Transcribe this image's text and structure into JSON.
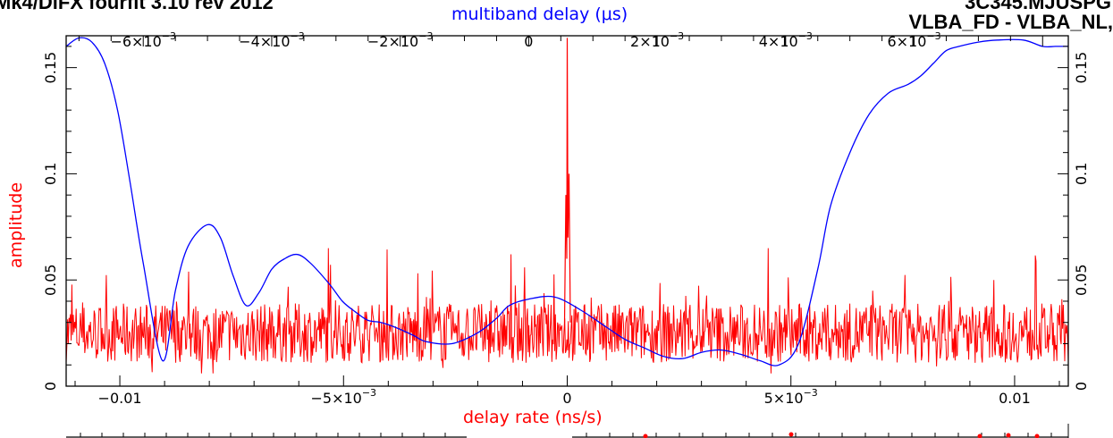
{
  "header": {
    "left_text": "Mk4/DiFX fourfit 3.10 rev 2012",
    "right_line1": "3C345.MJUSPG",
    "right_line2": "VLBA_FD - VLBA_NL,"
  },
  "colors": {
    "amplitude_trace": "#ff0000",
    "multiband_trace": "#0000ff",
    "frame": "#000000"
  },
  "chart_data": {
    "type": "line",
    "title": "",
    "top_axis_label": "multiband delay (μs)",
    "xlabel": "delay rate (ns/s)",
    "ylabel": "amplitude",
    "xlim_rate": [
      -0.0112,
      0.0112
    ],
    "xlim_mbd": [
      -0.0072,
      0.0084
    ],
    "ylim": [
      0,
      0.165
    ],
    "bottom_ticks": [
      {
        "value": -0.01,
        "label": "−0.01"
      },
      {
        "value": -0.005,
        "label": "−5×10",
        "exp": "−3"
      },
      {
        "value": 0,
        "label": "0"
      },
      {
        "value": 0.005,
        "label": "5×10",
        "exp": "−3"
      },
      {
        "value": 0.01,
        "label": "0.01"
      }
    ],
    "top_ticks": [
      {
        "value": -0.006,
        "label": "−6×10",
        "exp": "−3"
      },
      {
        "value": -0.004,
        "label": "−4×10",
        "exp": "−3"
      },
      {
        "value": -0.002,
        "label": "−2×10",
        "exp": "−3"
      },
      {
        "value": 0,
        "label": "0"
      },
      {
        "value": 0.002,
        "label": "2×10",
        "exp": "−3"
      },
      {
        "value": 0.004,
        "label": "4×10",
        "exp": "−3"
      },
      {
        "value": 0.006,
        "label": "6×10",
        "exp": "−3"
      }
    ],
    "y_ticks": [
      {
        "value": 0,
        "label": "0"
      },
      {
        "value": 0.05,
        "label": "0.05"
      },
      {
        "value": 0.1,
        "label": "0.1"
      },
      {
        "value": 0.15,
        "label": "0.15"
      }
    ],
    "series": [
      {
        "axis": "multiband delay",
        "color": "#0000ff",
        "x": [
          -0.0072,
          -0.007,
          -0.0068,
          -0.0066,
          -0.0064,
          -0.0062,
          -0.006,
          -0.0057,
          -0.0055,
          -0.0053,
          -0.005,
          -0.0048,
          -0.0046,
          -0.0044,
          -0.0042,
          -0.004,
          -0.0038,
          -0.0036,
          -0.0034,
          -0.0031,
          -0.0029,
          -0.0027,
          -0.0025,
          -0.0023,
          -0.0021,
          -0.0018,
          -0.0016,
          -0.0012,
          -0.0008,
          -0.0005,
          -0.0003,
          0.0,
          0.0004,
          0.0008,
          0.0012,
          0.0015,
          0.0018,
          0.0021,
          0.0024,
          0.0027,
          0.003,
          0.0033,
          0.0036,
          0.0039,
          0.0042,
          0.0045,
          0.0047,
          0.005,
          0.0053,
          0.0056,
          0.0059,
          0.0061,
          0.0063,
          0.0065,
          0.0067,
          0.007,
          0.0073,
          0.0077,
          0.008,
          0.0082,
          0.0084
        ],
        "y": [
          0.16,
          0.164,
          0.162,
          0.152,
          0.13,
          0.095,
          0.058,
          0.012,
          0.045,
          0.066,
          0.076,
          0.07,
          0.052,
          0.038,
          0.044,
          0.055,
          0.06,
          0.062,
          0.058,
          0.048,
          0.04,
          0.035,
          0.031,
          0.03,
          0.028,
          0.024,
          0.021,
          0.02,
          0.025,
          0.032,
          0.038,
          0.041,
          0.042,
          0.036,
          0.028,
          0.022,
          0.018,
          0.014,
          0.013,
          0.016,
          0.017,
          0.015,
          0.012,
          0.01,
          0.02,
          0.055,
          0.085,
          0.11,
          0.128,
          0.138,
          0.142,
          0.146,
          0.152,
          0.158,
          0.16,
          0.162,
          0.163,
          0.163,
          0.16,
          0.16,
          0.16
        ]
      },
      {
        "axis": "delay rate",
        "color": "#ff0000",
        "points": 1400,
        "noise_baseline": 0.025,
        "noise_max": 0.065,
        "peak": {
          "x": 0.0,
          "y": 0.164
        }
      }
    ]
  }
}
